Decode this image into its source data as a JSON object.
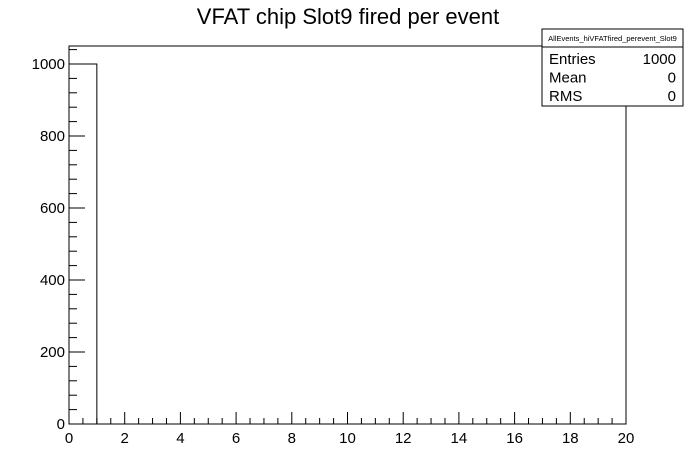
{
  "chart_data": {
    "type": "bar",
    "title": "VFAT chip Slot9 fired per event",
    "xlabel": "",
    "ylabel": "",
    "bin_edges": [
      0,
      1,
      2,
      3,
      4,
      5,
      6,
      7,
      8,
      9,
      10,
      11,
      12,
      13,
      14,
      15,
      16,
      17,
      18,
      19,
      20
    ],
    "values": [
      1000,
      0,
      0,
      0,
      0,
      0,
      0,
      0,
      0,
      0,
      0,
      0,
      0,
      0,
      0,
      0,
      0,
      0,
      0,
      0
    ],
    "xlim": [
      0,
      20
    ],
    "ylim": [
      0,
      1050
    ],
    "x_ticks": [
      0,
      2,
      4,
      6,
      8,
      10,
      12,
      14,
      16,
      18,
      20
    ],
    "x_tick_labels": [
      "0",
      "2",
      "4",
      "6",
      "8",
      "10",
      "12",
      "14",
      "16",
      "18",
      "20"
    ],
    "y_ticks": [
      0,
      200,
      400,
      600,
      800,
      1000
    ],
    "y_tick_labels": [
      "0",
      "200",
      "400",
      "600",
      "800",
      "1000"
    ],
    "grid": false,
    "legend": "none",
    "stats_box": {
      "name": "AllEvents_hiVFATfired_perevent_Slot9",
      "rows": [
        {
          "label": "Entries",
          "value": "1000"
        },
        {
          "label": "Mean",
          "value": "0"
        },
        {
          "label": "RMS",
          "value": "0"
        }
      ]
    }
  }
}
